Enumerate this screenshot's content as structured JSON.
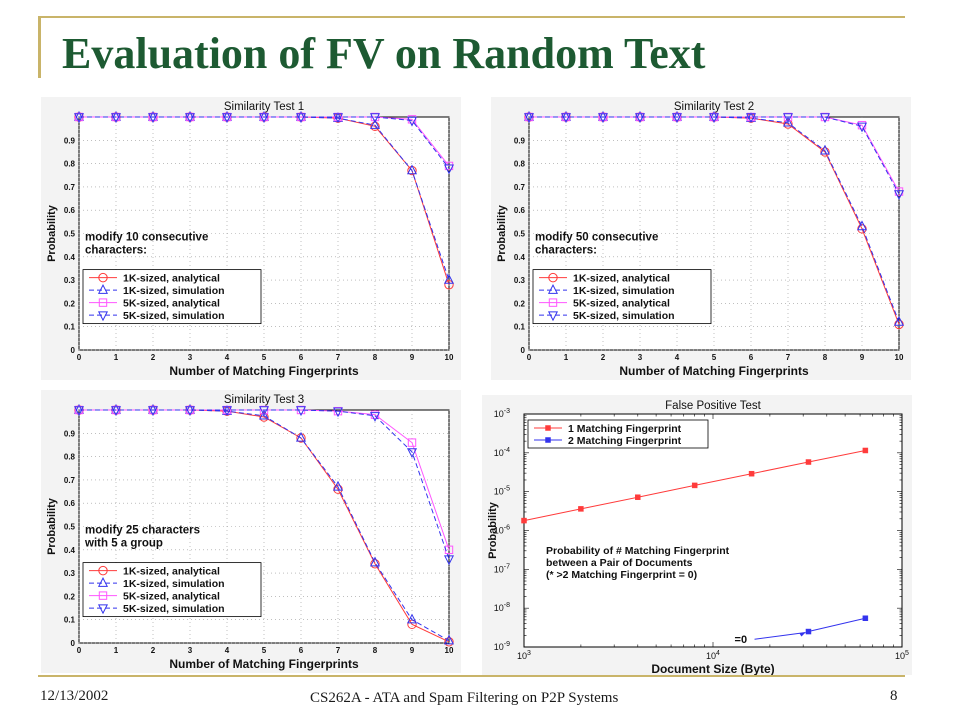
{
  "slide": {
    "title": "Evaluation of FV on Random Text",
    "footer_date": "12/13/2002",
    "footer_title": "CS262A - ATA and Spam Filtering on P2P Systems",
    "page_number": "8"
  },
  "colors": {
    "title": "#1d5a32",
    "accent_rule": "#c9b469",
    "red": "#ff3b3b",
    "blue": "#3333ee",
    "magenta": "#ff55ff"
  },
  "chart_data": [
    {
      "type": "line",
      "title": "Similarity Test 1",
      "xlabel": "Number of Matching Fingerprints",
      "ylabel": "Probability",
      "x": [
        0,
        1,
        2,
        3,
        4,
        5,
        6,
        7,
        8,
        9,
        10
      ],
      "xlim": [
        0,
        10
      ],
      "ylim": [
        0,
        1
      ],
      "yticks": [
        0,
        0.1,
        0.2,
        0.3,
        0.4,
        0.5,
        0.6,
        0.7,
        0.8,
        0.9
      ],
      "annotation": [
        "modify 10 consecutive",
        "characters:"
      ],
      "legend_position": "bottom-left",
      "series": [
        {
          "name": "1K-sized, analytical",
          "color": "#ff3b3b",
          "marker": "circle",
          "dash": false,
          "values": [
            1,
            1,
            1,
            1,
            1,
            1,
            1,
            0.995,
            0.96,
            0.77,
            0.28
          ]
        },
        {
          "name": "1K-sized, simulation",
          "color": "#3333ee",
          "marker": "triangle-up",
          "dash": true,
          "values": [
            1,
            1,
            1,
            1,
            1,
            1,
            1,
            0.995,
            0.965,
            0.77,
            0.3
          ]
        },
        {
          "name": "5K-sized, analytical",
          "color": "#ff55ff",
          "marker": "square",
          "dash": false,
          "values": [
            1,
            1,
            1,
            1,
            1,
            1,
            1,
            1,
            1,
            0.99,
            0.79
          ]
        },
        {
          "name": "5K-sized, simulation",
          "color": "#3333ee",
          "marker": "triangle-down",
          "dash": true,
          "values": [
            1,
            1,
            1,
            1,
            1,
            1,
            1,
            1,
            1,
            0.985,
            0.78
          ]
        }
      ]
    },
    {
      "type": "line",
      "title": "Similarity Test 2",
      "xlabel": "Number of Matching Fingerprints",
      "ylabel": "Probability",
      "x": [
        0,
        1,
        2,
        3,
        4,
        5,
        6,
        7,
        8,
        9,
        10
      ],
      "xlim": [
        0,
        10
      ],
      "ylim": [
        0,
        1
      ],
      "yticks": [
        0,
        0.1,
        0.2,
        0.3,
        0.4,
        0.5,
        0.6,
        0.7,
        0.8,
        0.9
      ],
      "annotation": [
        "modify 50 consecutive",
        "characters:"
      ],
      "legend_position": "bottom-left",
      "series": [
        {
          "name": "1K-sized, analytical",
          "color": "#ff3b3b",
          "marker": "circle",
          "dash": false,
          "values": [
            1,
            1,
            1,
            1,
            1,
            1,
            0.995,
            0.97,
            0.85,
            0.52,
            0.11
          ]
        },
        {
          "name": "1K-sized, simulation",
          "color": "#3333ee",
          "marker": "triangle-up",
          "dash": true,
          "values": [
            1,
            1,
            1,
            1,
            1,
            1,
            0.995,
            0.975,
            0.855,
            0.53,
            0.12
          ]
        },
        {
          "name": "5K-sized, analytical",
          "color": "#ff55ff",
          "marker": "square",
          "dash": false,
          "values": [
            1,
            1,
            1,
            1,
            1,
            1,
            1,
            1,
            1,
            0.965,
            0.68
          ]
        },
        {
          "name": "5K-sized, simulation",
          "color": "#3333ee",
          "marker": "triangle-down",
          "dash": true,
          "values": [
            1,
            1,
            1,
            1,
            1,
            1,
            1,
            1,
            1,
            0.96,
            0.67
          ]
        }
      ]
    },
    {
      "type": "line",
      "title": "Similarity Test 3",
      "xlabel": "Number of Matching Fingerprints",
      "ylabel": "Probability",
      "x": [
        0,
        1,
        2,
        3,
        4,
        5,
        6,
        7,
        8,
        9,
        10
      ],
      "xlim": [
        0,
        10
      ],
      "ylim": [
        0,
        1
      ],
      "yticks": [
        0,
        0.1,
        0.2,
        0.3,
        0.4,
        0.5,
        0.6,
        0.7,
        0.8,
        0.9
      ],
      "annotation": [
        "modify 25 characters",
        "with 5 a group"
      ],
      "legend_position": "bottom-left",
      "series": [
        {
          "name": "1K-sized, analytical",
          "color": "#ff3b3b",
          "marker": "circle",
          "dash": false,
          "values": [
            1,
            1,
            1,
            1,
            0.995,
            0.97,
            0.88,
            0.66,
            0.34,
            0.08,
            0.005
          ]
        },
        {
          "name": "1K-sized, simulation",
          "color": "#3333ee",
          "marker": "triangle-up",
          "dash": true,
          "values": [
            1,
            1,
            1,
            1,
            0.995,
            0.975,
            0.88,
            0.67,
            0.345,
            0.1,
            0.01
          ]
        },
        {
          "name": "5K-sized, analytical",
          "color": "#ff55ff",
          "marker": "square",
          "dash": false,
          "values": [
            1,
            1,
            1,
            1,
            1,
            1,
            1,
            0.995,
            0.98,
            0.86,
            0.4
          ]
        },
        {
          "name": "5K-sized, simulation",
          "color": "#3333ee",
          "marker": "triangle-down",
          "dash": true,
          "values": [
            1,
            1,
            1,
            1,
            1,
            1,
            1,
            0.995,
            0.975,
            0.82,
            0.36
          ]
        }
      ]
    },
    {
      "type": "line",
      "title": "False Positive Test",
      "xlabel": "Document Size (Byte)",
      "ylabel": "Probability",
      "xscale": "log",
      "yscale": "log",
      "xlim": [
        1000,
        100000
      ],
      "ylim": [
        1e-09,
        0.001
      ],
      "xtick_exponents": [
        3,
        4,
        5
      ],
      "ytick_exponents": [
        -9,
        -8,
        -7,
        -6,
        -5,
        -4,
        -3
      ],
      "legend_position": "top-left",
      "annotation": [
        "Probability of # Matching Fingerprint",
        "between a Pair of Documents",
        "(* >2 Matching Fingerprint = 0)"
      ],
      "arrow_label": "=0",
      "series": [
        {
          "name": "1 Matching Fingerprint",
          "color": "#ff3b3b",
          "marker": "square",
          "x": [
            1000,
            2000,
            4000,
            8000,
            16000,
            32000,
            64000
          ],
          "values": [
            1.8e-06,
            3.6e-06,
            7.2e-06,
            1.45e-05,
            2.9e-05,
            5.8e-05,
            0.000115
          ]
        },
        {
          "name": "2 Matching Fingerprint",
          "color": "#3333ee",
          "marker": "square",
          "x": [
            32000,
            64000
          ],
          "values": [
            2.5e-09,
            5.5e-09
          ]
        }
      ]
    }
  ]
}
